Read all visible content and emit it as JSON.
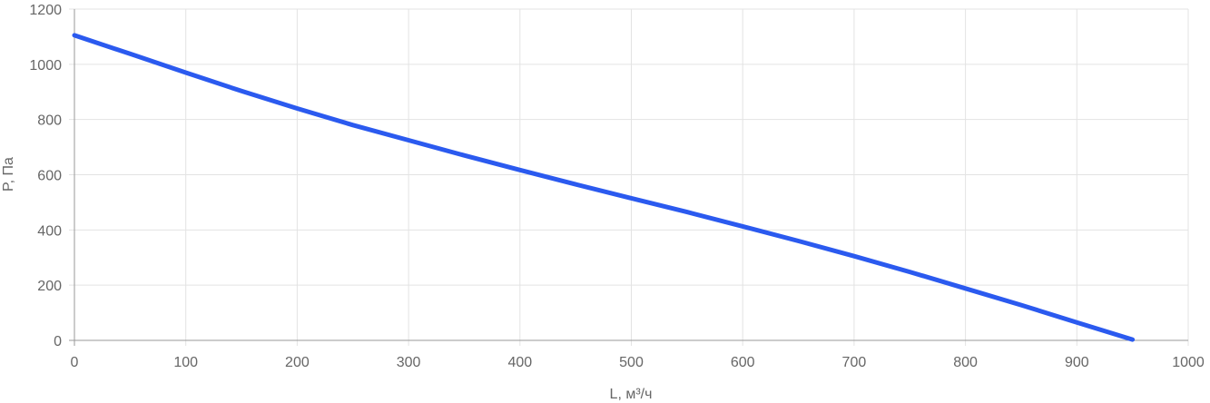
{
  "chart_data": {
    "type": "line",
    "title": "",
    "xlabel": "L, м³/ч",
    "ylabel": "P, Па",
    "xlim": [
      0,
      1000
    ],
    "ylim": [
      0,
      1200
    ],
    "x_ticks": [
      0,
      100,
      200,
      300,
      400,
      500,
      600,
      700,
      800,
      900,
      1000
    ],
    "y_ticks": [
      0,
      200,
      400,
      600,
      800,
      1000,
      1200
    ],
    "grid": true,
    "legend": "none",
    "series": [
      {
        "color": "#2b5aef",
        "x": [
          0,
          50,
          100,
          150,
          200,
          250,
          300,
          350,
          400,
          450,
          500,
          550,
          600,
          650,
          700,
          750,
          800,
          850,
          900,
          950
        ],
        "y": [
          1105,
          1038,
          970,
          903,
          840,
          780,
          725,
          670,
          617,
          565,
          515,
          465,
          413,
          360,
          305,
          248,
          188,
          128,
          65,
          3
        ]
      }
    ]
  }
}
